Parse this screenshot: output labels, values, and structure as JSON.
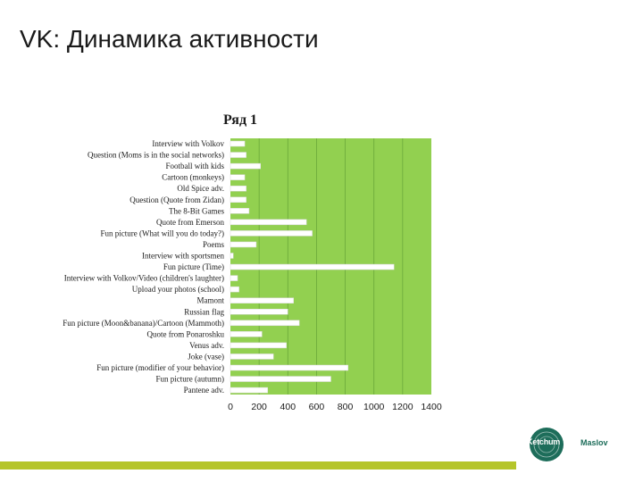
{
  "slide": {
    "title": "VK: Динамика активности"
  },
  "colors": {
    "plot_bg": "#92d050",
    "bar_fill": "#ffffff",
    "accent_bar": "#b5c52a",
    "logo_teal": "#1d6d5a"
  },
  "logo": {
    "word1": "Ketchum",
    "word2": "Maslov"
  },
  "chart_data": {
    "type": "bar",
    "orientation": "horizontal",
    "title": "Ряд 1",
    "xlim": [
      0,
      1400
    ],
    "xticks": [
      0,
      200,
      400,
      600,
      800,
      1000,
      1200,
      1400
    ],
    "grid": "vertical",
    "legend": "none",
    "categories": [
      "Interview with Volkov",
      "Question (Moms is in the social networks)",
      "Football with kids",
      "Cartoon (monkeys)",
      "Old Spice adv.",
      "Question (Quote from Zidan)",
      "The 8-Bit Games",
      "Quote from Emerson",
      "Fun picture (What will you do today?)",
      "Poems",
      "Interview with sportsmen",
      "Fun picture (Time)",
      "Interview with Volkov/Video (children's laughter)",
      "Upload your photos (school)",
      "Mamont",
      "Russian flag",
      "Fun picture (Moon&banana)/Cartoon (Mammoth)",
      "Quote from Ponaroshku",
      "Venus adv.",
      "Joke (vase)",
      "Fun picture (modifier of your behavior)",
      "Fun picture (autumn)",
      "Pantene adv."
    ],
    "values": [
      100,
      110,
      210,
      100,
      110,
      110,
      130,
      530,
      570,
      180,
      20,
      1140,
      50,
      60,
      440,
      400,
      480,
      220,
      390,
      300,
      820,
      700,
      260
    ]
  }
}
